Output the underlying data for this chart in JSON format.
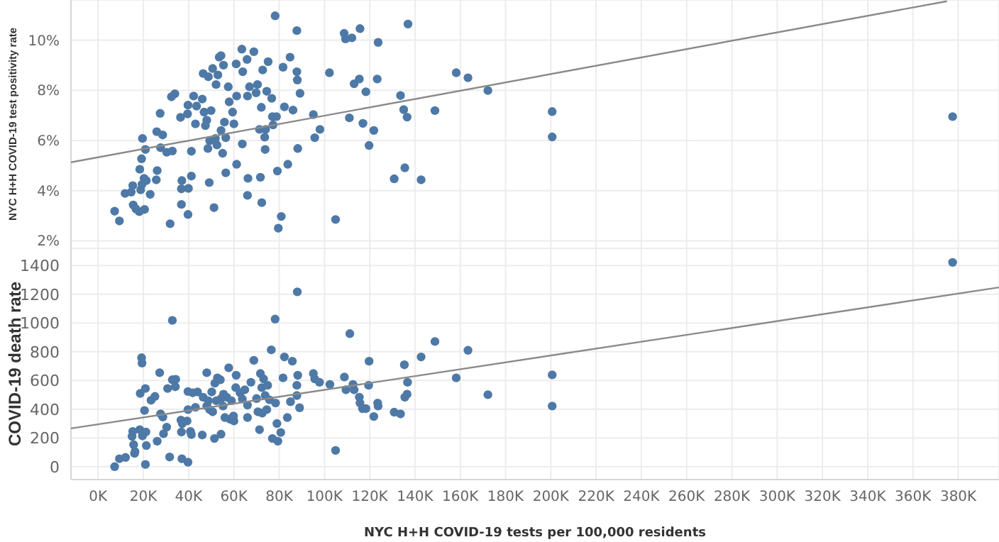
{
  "chart_data": [
    {
      "type": "scatter",
      "ylabel": "NYC H+H COVID-19 test positivity rate",
      "xlim": [
        -12,
        398
      ],
      "xticks": [
        0,
        20,
        40,
        60,
        80,
        100,
        120,
        140,
        160,
        180,
        200,
        220,
        240,
        260,
        280,
        300,
        320,
        340,
        360,
        380
      ],
      "ylim": [
        1.7,
        11.6
      ],
      "yticks": [
        {
          "value": 2,
          "label": "2%"
        },
        {
          "value": 4,
          "label": "4%"
        },
        {
          "value": 6,
          "label": "6%"
        },
        {
          "value": 8,
          "label": "8%"
        },
        {
          "value": 10,
          "label": "10%"
        }
      ],
      "tick_labels": "y",
      "grid": true,
      "series": [
        {
          "type": "scatter",
          "marker": "circle",
          "color": "#4e79a7",
          "x": [
            7.3,
            9.4,
            11.9,
            14.6,
            15.3,
            15.5,
            16.7,
            18.2,
            18.8,
            19.4,
            19.6,
            19.2,
            18.4,
            20.3,
            20.5,
            20.9,
            21.3,
            23,
            25.7,
            25.9,
            26.1,
            27.4,
            27.6,
            28.5,
            30.3,
            31.8,
            32.4,
            33.9,
            32.8,
            36.4,
            36.8,
            37,
            36.8,
            39.7,
            39.9,
            39.7,
            39.5,
            41.2,
            41.2,
            42.2,
            43,
            43.5,
            46,
            46.4,
            46.8,
            47.4,
            48,
            48.7,
            48.5,
            49.1,
            49.3,
            49.9,
            50.6,
            51.2,
            51.8,
            52.1,
            52.5,
            52.9,
            53.5,
            54.3,
            54.3,
            55,
            55.4,
            55.8,
            56.4,
            56.4,
            57.5,
            57.9,
            59.4,
            60,
            61,
            61.2,
            61.2,
            63.5,
            63.7,
            63.9,
            65.8,
            66,
            66.2,
            66,
            66.9,
            68.8,
            69.8,
            70.4,
            71.3,
            72.1,
            71.7,
            72.3,
            72.7,
            73.6,
            73.8,
            74,
            74.5,
            75.1,
            76.7,
            77,
            77.3,
            78.2,
            78.8,
            79.2,
            79.6,
            80.9,
            81.7,
            82.3,
            83.8,
            84.8,
            86.1,
            87.8,
            87.8,
            88,
            88.2,
            89.2,
            95.1,
            95.7,
            98,
            102.2,
            104.9,
            108.7,
            109.3,
            111,
            112.1,
            113.1,
            115.4,
            115.7,
            117,
            118.3,
            119.7,
            121.8,
            123.7,
            123.3,
            130.8,
            133.6,
            135,
            135.5,
            136.5,
            136.9,
            142.7,
            148.8,
            158.2,
            163.4,
            172.2,
            200.6,
            200.6,
            377.5
          ],
          "values": [
            3.18,
            2.79,
            3.89,
            3.94,
            4.2,
            3.43,
            3.27,
            3.16,
            4.03,
            4.25,
            6.08,
            5.27,
            4.85,
            4.49,
            3.25,
            5.64,
            4.4,
            3.85,
            4.43,
            6.35,
            4.8,
            7.08,
            5.71,
            6.22,
            5.53,
            2.68,
            7.74,
            7.86,
            5.58,
            6.92,
            3.45,
            4.4,
            4.07,
            3.05,
            4.09,
            7.41,
            7.06,
            5.57,
            4.58,
            7.77,
            6.66,
            7.37,
            7.65,
            8.67,
            7.13,
            6.59,
            6.81,
            8.54,
            5.68,
            4.32,
            5.99,
            7.19,
            8.87,
            3.32,
            6.08,
            8.23,
            5.82,
            8.61,
            9.32,
            9.38,
            6.4,
            5.49,
            9,
            6.73,
            6.11,
            4.71,
            8.14,
            7.54,
            7.13,
            6.66,
            9.05,
            7.77,
            5.05,
            9.64,
            5.86,
            8.74,
            9.23,
            7.77,
            4.49,
            3.81,
            8.14,
            9.54,
            7.9,
            8.23,
            6.44,
            7.32,
            4.53,
            3.52,
            8.81,
            6.13,
            5.64,
            6.44,
            7.96,
            9.14,
            7.68,
            6.95,
            6.62,
            10.97,
            6.95,
            4.78,
            2.5,
            2.97,
            8.92,
            7.34,
            5.05,
            9.32,
            7.21,
            10.38,
            8.74,
            8.41,
            5.68,
            7.88,
            7.03,
            6.11,
            6.44,
            8.7,
            2.85,
            10.27,
            10.05,
            6.9,
            10.09,
            8.26,
            8.45,
            10.46,
            6.68,
            7.94,
            5.8,
            6.4,
            9.91,
            8.45,
            4.47,
            7.79,
            7.23,
            4.91,
            6.93,
            10.64,
            4.43,
            7.19,
            8.7,
            8.5,
            7.99,
            7.15,
            6.14,
            6.95
          ]
        },
        {
          "type": "line",
          "color": "#8a8a8a",
          "x": [
            -12,
            375
          ],
          "values": [
            5.13,
            11.55
          ]
        }
      ]
    },
    {
      "type": "scatter",
      "ylabel": "COVID-19 death rate",
      "xlabel": "NYC H+H COVID-19 tests per 100,000 residents",
      "xlim": [
        -12,
        398
      ],
      "xticks": [
        {
          "value": 0,
          "label": "0K"
        },
        {
          "value": 20,
          "label": "20K"
        },
        {
          "value": 40,
          "label": "40K"
        },
        {
          "value": 60,
          "label": "60K"
        },
        {
          "value": 80,
          "label": "80K"
        },
        {
          "value": 100,
          "label": "100K"
        },
        {
          "value": 120,
          "label": "120K"
        },
        {
          "value": 140,
          "label": "140K"
        },
        {
          "value": 160,
          "label": "160K"
        },
        {
          "value": 180,
          "label": "180K"
        },
        {
          "value": 200,
          "label": "200K"
        },
        {
          "value": 220,
          "label": "220K"
        },
        {
          "value": 240,
          "label": "240K"
        },
        {
          "value": 260,
          "label": "260K"
        },
        {
          "value": 280,
          "label": "280K"
        },
        {
          "value": 300,
          "label": "300K"
        },
        {
          "value": 320,
          "label": "320K"
        },
        {
          "value": 340,
          "label": "340K"
        },
        {
          "value": 360,
          "label": "360K"
        },
        {
          "value": 380,
          "label": "380K"
        }
      ],
      "ylim": [
        -90,
        1520
      ],
      "yticks": [
        0,
        200,
        400,
        600,
        800,
        1000,
        1200,
        1400
      ],
      "grid": true,
      "series": [
        {
          "type": "scatter",
          "marker": "circle",
          "color": "#4e79a7",
          "x": [
            7.3,
            9.4,
            12.1,
            15.3,
            15,
            15.7,
            16.1,
            16.3,
            18.4,
            18.6,
            19.2,
            19.4,
            19.6,
            20.5,
            20.9,
            20.9,
            21.1,
            21.3,
            23.4,
            25.1,
            26.1,
            27.2,
            27.6,
            28.6,
            28.9,
            30.3,
            30.7,
            31.6,
            32.8,
            32.8,
            34.3,
            34.1,
            36.6,
            36.8,
            37,
            37.2,
            39.3,
            39.7,
            39.7,
            39.7,
            40.8,
            41.2,
            41.8,
            43,
            43.9,
            46,
            46.4,
            48,
            48,
            48.7,
            49.3,
            50.2,
            50.6,
            51.4,
            51.6,
            52.2,
            52.7,
            54,
            54.3,
            54.3,
            55.2,
            55.4,
            56,
            56.8,
            57.7,
            58.3,
            58.9,
            59.8,
            60,
            60.8,
            61,
            62.7,
            63.7,
            64.8,
            66,
            66,
            67.5,
            68.8,
            70,
            70.6,
            71.3,
            71.7,
            72.3,
            72.5,
            73.1,
            73.8,
            74.5,
            74.9,
            75.7,
            76.5,
            77,
            78.2,
            78.4,
            79,
            79.4,
            80.7,
            81.7,
            82.3,
            83.6,
            85,
            85.8,
            87.8,
            87.8,
            88,
            88.2,
            89,
            95.1,
            95.7,
            97.8,
            102.4,
            104.9,
            108.8,
            109.5,
            111.2,
            112.6,
            113.1,
            115.4,
            115.7,
            116.8,
            118.3,
            119.7,
            119.5,
            121.8,
            123.5,
            123.7,
            130.8,
            133.6,
            135.3,
            135.5,
            136.5,
            136.7,
            142.7,
            148.8,
            158.2,
            163.4,
            172.2,
            200.6,
            200.6,
            377.5
          ],
          "values": [
            0,
            55,
            64,
            245,
            211,
            153,
            92,
            104,
            257,
            510,
            758,
            721,
            214,
            391,
            544,
            15,
            241,
            147,
            462,
            489,
            177,
            654,
            367,
            345,
            229,
            275,
            544,
            67,
            1018,
            605,
            608,
            556,
            324,
            241,
            55,
            300,
            318,
            523,
            397,
            31,
            245,
            223,
            514,
            413,
            520,
            220,
            483,
            654,
            422,
            459,
            397,
            520,
            382,
            196,
            581,
            459,
            618,
            605,
            226,
            474,
            422,
            504,
            342,
            483,
            688,
            330,
            459,
            352,
            318,
            550,
            636,
            514,
            471,
            535,
            342,
            428,
            587,
            740,
            474,
            382,
            257,
            648,
            550,
            373,
            611,
            495,
            397,
            566,
            465,
            813,
            196,
            1027,
            443,
            300,
            177,
            238,
            618,
            764,
            342,
            452,
            734,
            495,
            566,
            1217,
            636,
            410,
            648,
            611,
            587,
            572,
            113,
            624,
            535,
            926,
            572,
            535,
            483,
            443,
            404,
            404,
            734,
            566,
            349,
            443,
            422,
            379,
            367,
            709,
            483,
            504,
            587,
            764,
            871,
            618,
            810,
            501,
            639,
            422,
            1422
          ]
        },
        {
          "type": "line",
          "color": "#8a8a8a",
          "x": [
            -12,
            398
          ],
          "values": [
            266,
            1248
          ]
        }
      ]
    }
  ]
}
